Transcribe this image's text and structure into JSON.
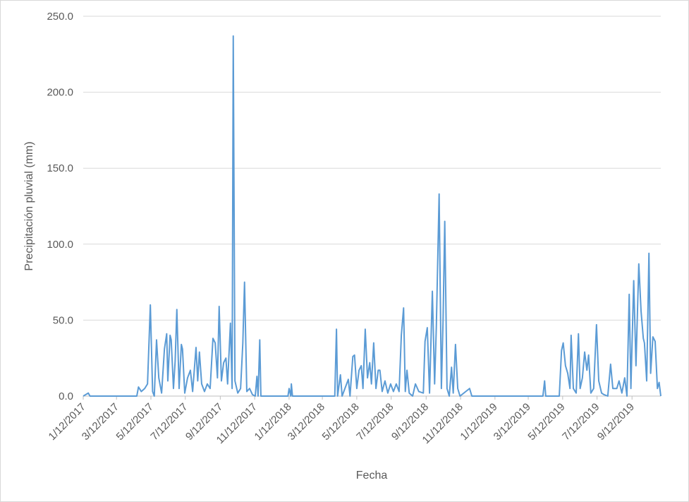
{
  "chart_data": {
    "type": "line",
    "y_label": "Precipitación pluvial (mm)",
    "x_label": "Fecha",
    "color": "#5b9bd5",
    "grid": true,
    "xlim": [
      "2017-01-12",
      "2019-11-02"
    ],
    "ylim": [
      0,
      250
    ],
    "yticks": [
      {
        "value": 0,
        "label": "0.0"
      },
      {
        "value": 50,
        "label": "50.0"
      },
      {
        "value": 100,
        "label": "100.0"
      },
      {
        "value": 150,
        "label": "150.0"
      },
      {
        "value": 200,
        "label": "200.0"
      },
      {
        "value": 250,
        "label": "250.0"
      }
    ],
    "xticks": [
      {
        "value": "2017-01-12",
        "label": "1/12/2017"
      },
      {
        "value": "2017-03-12",
        "label": "3/12/2017"
      },
      {
        "value": "2017-05-12",
        "label": "5/12/2017"
      },
      {
        "value": "2017-07-12",
        "label": "7/12/2017"
      },
      {
        "value": "2017-09-12",
        "label": "9/12/2017"
      },
      {
        "value": "2017-11-12",
        "label": "11/12/2017"
      },
      {
        "value": "2018-01-12",
        "label": "1/12/2018"
      },
      {
        "value": "2018-03-12",
        "label": "3/12/2018"
      },
      {
        "value": "2018-05-12",
        "label": "5/12/2018"
      },
      {
        "value": "2018-07-12",
        "label": "7/12/2018"
      },
      {
        "value": "2018-09-12",
        "label": "9/12/2018"
      },
      {
        "value": "2018-11-12",
        "label": "11/12/2018"
      },
      {
        "value": "2019-01-12",
        "label": "1/12/2019"
      },
      {
        "value": "2019-03-12",
        "label": "3/12/2019"
      },
      {
        "value": "2019-05-12",
        "label": "5/12/2019"
      },
      {
        "value": "2019-07-12",
        "label": "7/12/2019"
      },
      {
        "value": "2019-09-12",
        "label": "9/12/2019"
      }
    ],
    "x": [
      "2017-01-12",
      "2017-01-21",
      "2017-01-24",
      "2017-04-17",
      "2017-04-20",
      "2017-04-25",
      "2017-05-01",
      "2017-05-06",
      "2017-05-11",
      "2017-05-15",
      "2017-05-18",
      "2017-05-22",
      "2017-05-26",
      "2017-05-31",
      "2017-06-05",
      "2017-06-09",
      "2017-06-11",
      "2017-06-15",
      "2017-06-17",
      "2017-06-21",
      "2017-06-24",
      "2017-06-27",
      "2017-07-01",
      "2017-07-05",
      "2017-07-07",
      "2017-07-11",
      "2017-07-16",
      "2017-07-21",
      "2017-07-25",
      "2017-07-31",
      "2017-08-03",
      "2017-08-06",
      "2017-08-10",
      "2017-08-15",
      "2017-08-20",
      "2017-08-25",
      "2017-08-30",
      "2017-09-03",
      "2017-09-07",
      "2017-09-10",
      "2017-09-14",
      "2017-09-18",
      "2017-09-22",
      "2017-09-25",
      "2017-09-30",
      "2017-10-03",
      "2017-10-05",
      "2017-10-08",
      "2017-10-13",
      "2017-10-18",
      "2017-10-22",
      "2017-10-25",
      "2017-10-29",
      "2017-11-03",
      "2017-11-08",
      "2017-11-13",
      "2017-11-16",
      "2017-11-18",
      "2017-11-21",
      "2017-11-23",
      "2018-01-10",
      "2018-01-12",
      "2018-01-15",
      "2018-01-16",
      "2018-01-18",
      "2018-04-03",
      "2018-04-06",
      "2018-04-08",
      "2018-04-13",
      "2018-04-16",
      "2018-04-27",
      "2018-04-30",
      "2018-05-05",
      "2018-05-08",
      "2018-05-12",
      "2018-05-16",
      "2018-05-20",
      "2018-05-23",
      "2018-05-27",
      "2018-05-31",
      "2018-06-04",
      "2018-06-07",
      "2018-06-11",
      "2018-06-15",
      "2018-06-19",
      "2018-06-22",
      "2018-06-26",
      "2018-07-01",
      "2018-07-06",
      "2018-07-11",
      "2018-07-16",
      "2018-07-21",
      "2018-07-26",
      "2018-07-30",
      "2018-08-03",
      "2018-08-06",
      "2018-08-09",
      "2018-08-13",
      "2018-08-19",
      "2018-08-24",
      "2018-08-30",
      "2018-09-07",
      "2018-09-10",
      "2018-09-14",
      "2018-09-18",
      "2018-09-23",
      "2018-09-27",
      "2018-09-30",
      "2018-10-05",
      "2018-10-09",
      "2018-10-12",
      "2018-10-15",
      "2018-10-19",
      "2018-10-23",
      "2018-10-27",
      "2018-10-30",
      "2018-11-03",
      "2018-11-07",
      "2018-11-11",
      "2018-11-28",
      "2018-12-02",
      "2019-04-07",
      "2019-04-10",
      "2019-04-12",
      "2019-05-06",
      "2019-05-10",
      "2019-05-13",
      "2019-05-17",
      "2019-05-21",
      "2019-05-25",
      "2019-05-27",
      "2019-05-31",
      "2019-06-05",
      "2019-06-09",
      "2019-06-12",
      "2019-06-16",
      "2019-06-20",
      "2019-06-24",
      "2019-06-27",
      "2019-07-01",
      "2019-07-06",
      "2019-07-11",
      "2019-07-15",
      "2019-07-20",
      "2019-07-24",
      "2019-07-31",
      "2019-08-05",
      "2019-08-09",
      "2019-08-16",
      "2019-08-20",
      "2019-08-25",
      "2019-08-30",
      "2019-09-03",
      "2019-09-07",
      "2019-09-10",
      "2019-09-15",
      "2019-09-19",
      "2019-09-24",
      "2019-09-28",
      "2019-10-02",
      "2019-10-04",
      "2019-10-08",
      "2019-10-12",
      "2019-10-15",
      "2019-10-19",
      "2019-10-23",
      "2019-10-27",
      "2019-10-30",
      "2019-11-02"
    ],
    "values": [
      0,
      2,
      0,
      0,
      6,
      3,
      5,
      8,
      60,
      3,
      0,
      37,
      12,
      2,
      31,
      41,
      10,
      40,
      37,
      5,
      23,
      57,
      5,
      34,
      31,
      2,
      12,
      17,
      3,
      32,
      10,
      29,
      8,
      3,
      8,
      5,
      38,
      35,
      12,
      59,
      10,
      22,
      25,
      8,
      48,
      5,
      237,
      10,
      2,
      5,
      35,
      75,
      3,
      5,
      1,
      0,
      13,
      0,
      37,
      0,
      0,
      5,
      0,
      8,
      0,
      0,
      44,
      0,
      14,
      0,
      11,
      0,
      26,
      27,
      5,
      17,
      20,
      5,
      44,
      12,
      22,
      8,
      35,
      5,
      17,
      17,
      3,
      10,
      2,
      8,
      3,
      8,
      3,
      40,
      58,
      3,
      17,
      2,
      0,
      8,
      3,
      2,
      36,
      45,
      2,
      69,
      8,
      45,
      133,
      5,
      50,
      115,
      5,
      0,
      19,
      2,
      34,
      5,
      0,
      5,
      0,
      0,
      10,
      0,
      0,
      30,
      35,
      20,
      15,
      5,
      40,
      5,
      2,
      41,
      5,
      12,
      29,
      17,
      27,
      2,
      5,
      47,
      10,
      2,
      1,
      0,
      21,
      5,
      5,
      10,
      2,
      12,
      0,
      67,
      5,
      76,
      20,
      87,
      56,
      38,
      35,
      10,
      94,
      15,
      39,
      36,
      5,
      9,
      0
    ]
  }
}
